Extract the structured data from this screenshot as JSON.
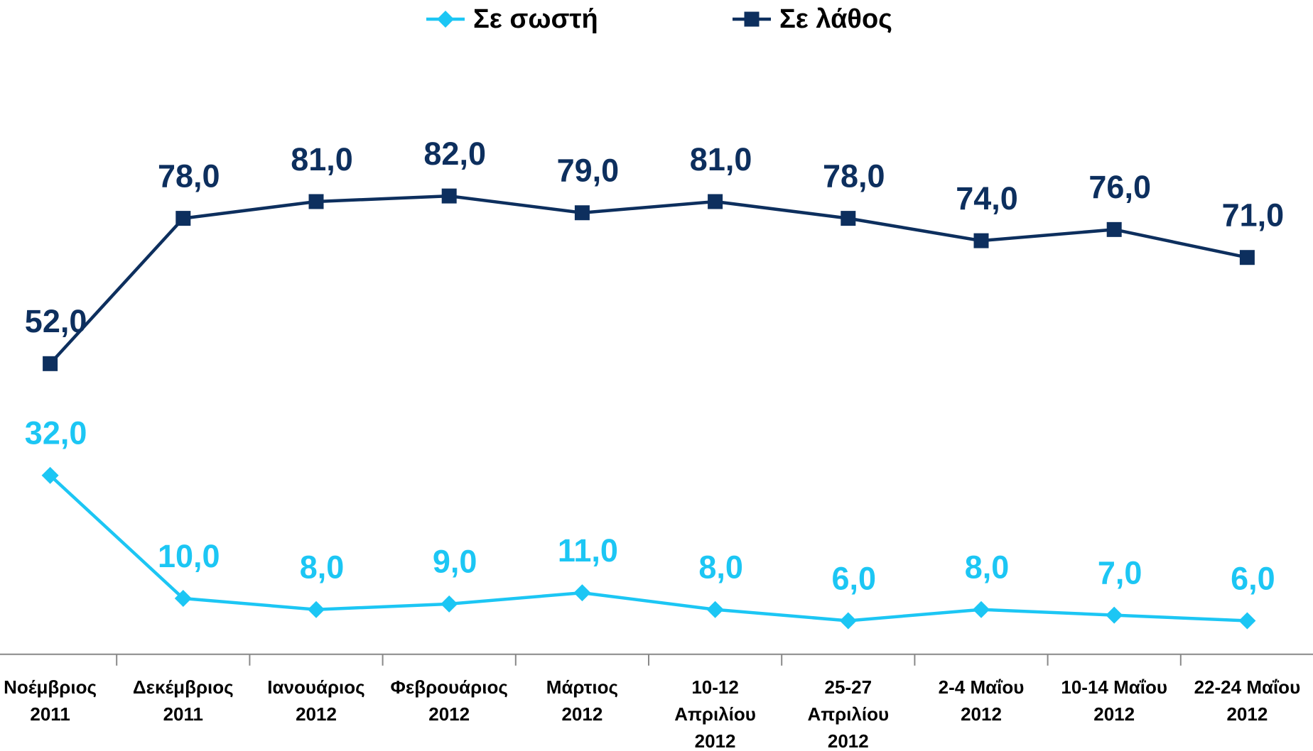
{
  "chart_data": {
    "type": "line",
    "categories": [
      [
        "Νοέμβριος",
        "2011"
      ],
      [
        "Δεκέμβριος",
        "2011"
      ],
      [
        "Ιανουάριος",
        "2012"
      ],
      [
        "Φεβρουάριος",
        "2012"
      ],
      [
        "Μάρτιος",
        "2012"
      ],
      [
        "10-12",
        "Απριλίου",
        "2012"
      ],
      [
        "25-27",
        "Απριλίου",
        "2012"
      ],
      [
        "2-4 Μαΐου",
        "2012"
      ],
      [
        "10-14 Μαΐου",
        "2012"
      ],
      [
        "22-24 Μαΐου",
        "2012"
      ]
    ],
    "series": [
      {
        "name": "Σε σωστή",
        "color": "#1cc6f4",
        "marker": "diamond",
        "values": [
          32,
          10,
          8,
          9,
          11,
          8,
          6,
          8,
          7,
          6
        ],
        "value_labels": [
          "32,0",
          "10,0",
          "8,0",
          "9,0",
          "11,0",
          "8,0",
          "6,0",
          "8,0",
          "7,0",
          "6,0"
        ]
      },
      {
        "name": "Σε λάθος",
        "color": "#0d2f5e",
        "marker": "square",
        "values": [
          52,
          78,
          81,
          82,
          79,
          81,
          78,
          74,
          76,
          71
        ],
        "value_labels": [
          "52,0",
          "78,0",
          "81,0",
          "82,0",
          "79,0",
          "81,0",
          "78,0",
          "74,0",
          "76,0",
          "71,0"
        ]
      }
    ],
    "ylim": [
      0,
      100
    ],
    "legend": "top"
  }
}
